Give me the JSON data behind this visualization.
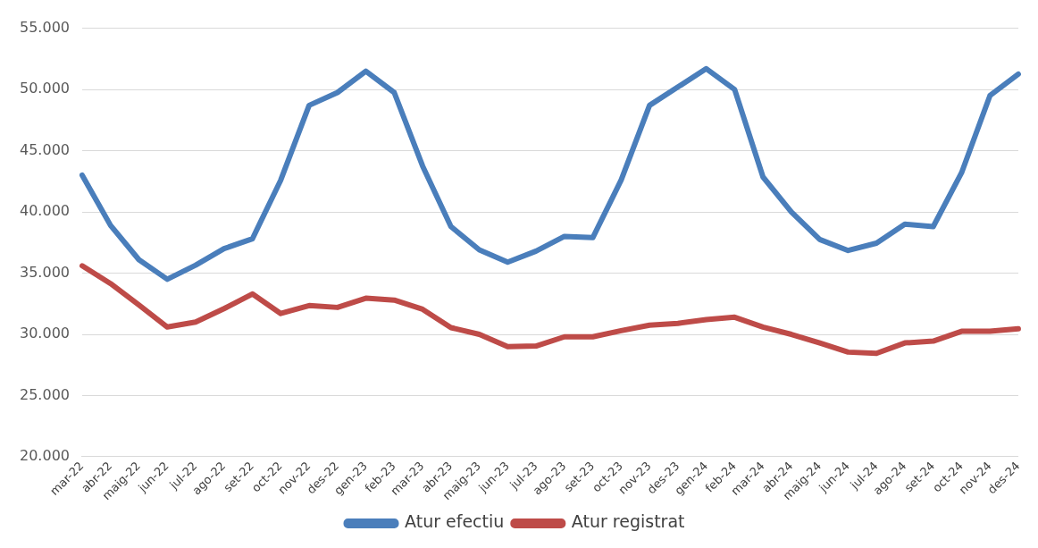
{
  "chart_data": {
    "type": "line",
    "categories": [
      "mar-22",
      "abr-22",
      "maig-22",
      "jun-22",
      "jul-22",
      "ago-22",
      "set-22",
      "oct-22",
      "nov-22",
      "des-22",
      "gen-23",
      "feb-23",
      "mar-23",
      "abr-23",
      "maig-23",
      "jun-23",
      "jul-23",
      "ago-23",
      "set-23",
      "oct-23",
      "nov-23",
      "des-23",
      "gen-24",
      "feb-24",
      "mar-24",
      "abr-24",
      "maig-24",
      "jun-24",
      "jul-24",
      "ago-24",
      "set-24",
      "oct-24",
      "nov-24",
      "des-24"
    ],
    "series": [
      {
        "name": "Atur efectiu",
        "color": "#4a7ebb",
        "values": [
          43000,
          38900,
          36100,
          34500,
          35650,
          37000,
          37800,
          42600,
          48700,
          49750,
          51500,
          49750,
          43750,
          38800,
          36900,
          35900,
          36800,
          38000,
          37900,
          42600,
          48700,
          50200,
          51700,
          50000,
          42850,
          40000,
          37750,
          36850,
          37450,
          39000,
          38800,
          43200,
          49500,
          51250
        ]
      },
      {
        "name": "Atur registrat",
        "color": "#be4b48",
        "values": [
          35600,
          34150,
          32400,
          30600,
          31000,
          32100,
          33300,
          31700,
          32350,
          32200,
          32950,
          32800,
          32050,
          30550,
          30000,
          29000,
          29050,
          29800,
          29800,
          30300,
          30750,
          30900,
          31200,
          31400,
          30600,
          30000,
          29300,
          28550,
          28450,
          29300,
          29450,
          30250,
          30250,
          30450
        ]
      }
    ],
    "ylim": [
      20000,
      55000
    ],
    "yticks": [
      {
        "value": 20000,
        "label": "20.000"
      },
      {
        "value": 25000,
        "label": "25.000"
      },
      {
        "value": 30000,
        "label": "30.000"
      },
      {
        "value": 35000,
        "label": "35.000"
      },
      {
        "value": 40000,
        "label": "40.000"
      },
      {
        "value": 45000,
        "label": "45.000"
      },
      {
        "value": 50000,
        "label": "50.000"
      },
      {
        "value": 55000,
        "label": "55.000"
      }
    ],
    "grid": "y",
    "legend": "bottom",
    "marker": "none",
    "line_style": "solid"
  }
}
